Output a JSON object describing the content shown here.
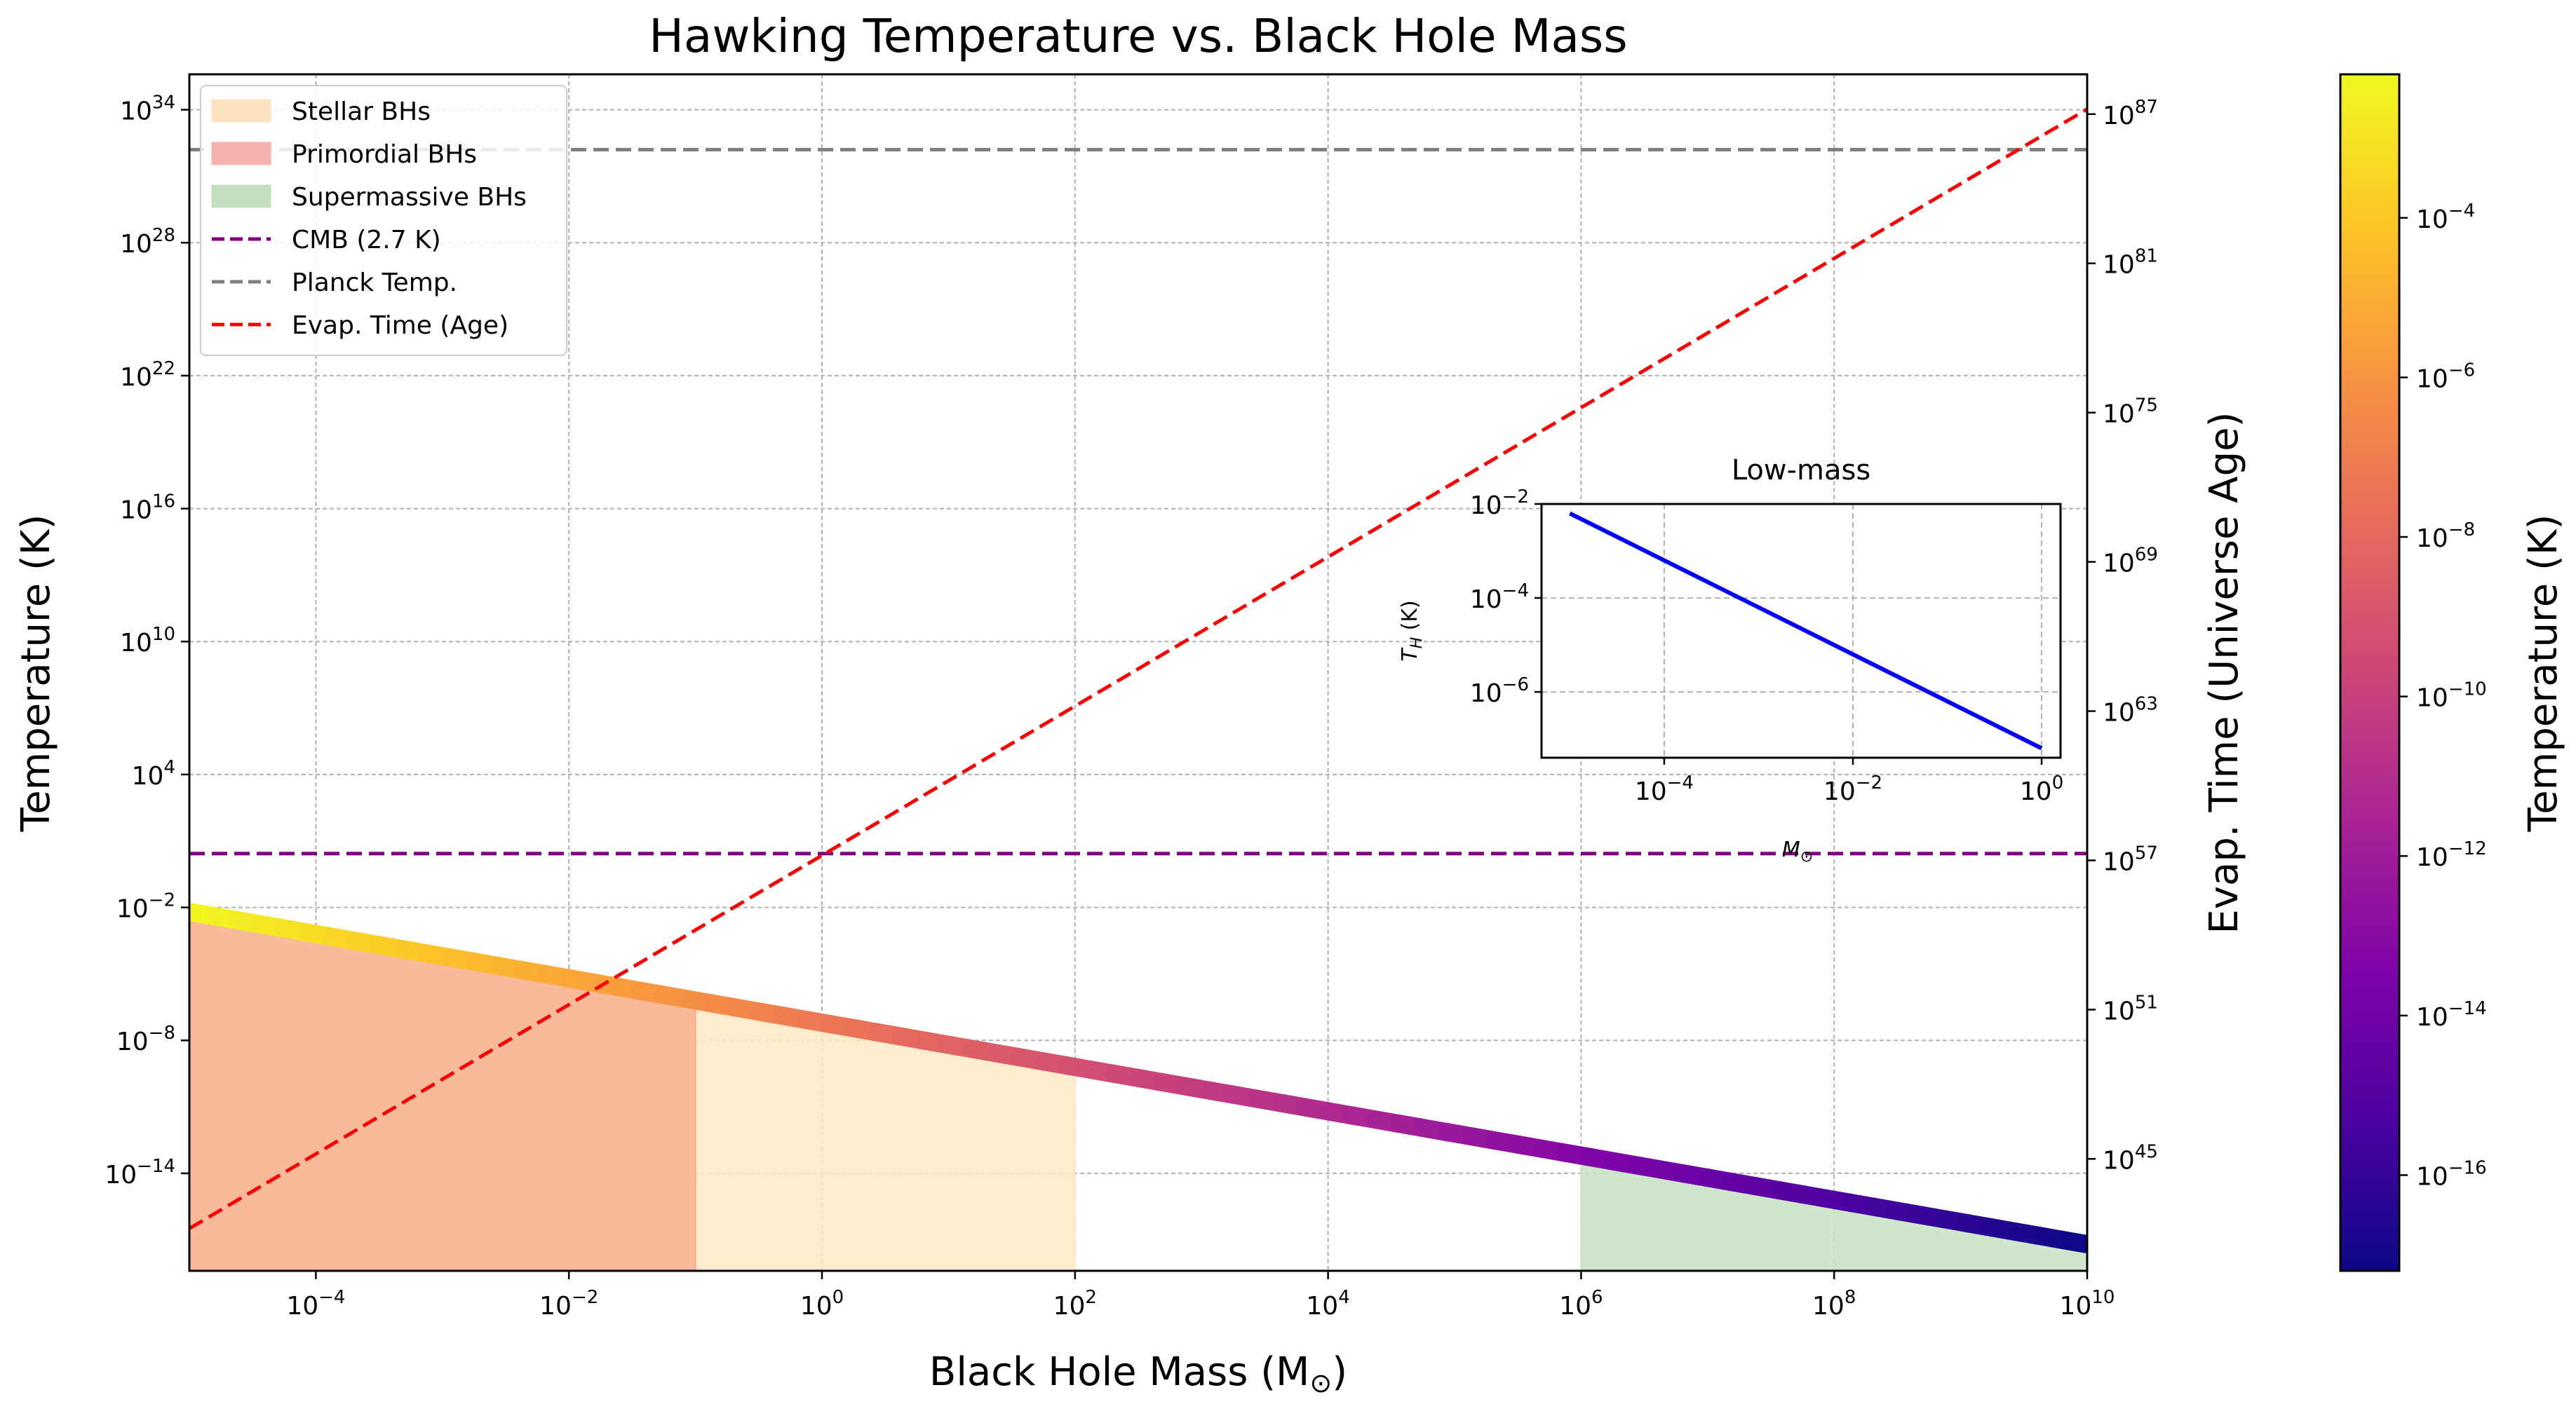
{
  "chart_data": {
    "type": "line",
    "title": "Hawking Temperature vs. Black Hole Mass",
    "xlabel": "Black Hole Mass (M",
    "xlabel_sub": "⊙",
    "xlabel_close": ")",
    "ylabel": "Temperature (K)",
    "y2label": "Evap. Time (Universe Age)",
    "xscale": "log",
    "xlim_exp": [
      -5,
      10
    ],
    "ylim_exp": [
      -18.4,
      35.6
    ],
    "y2lim_exp": [
      40.5,
      88.6
    ],
    "x_ticks": [
      {
        "base": "10",
        "exp": "−4",
        "e": -4
      },
      {
        "base": "10",
        "exp": "−2",
        "e": -2
      },
      {
        "base": "10",
        "exp": "0",
        "e": 0
      },
      {
        "base": "10",
        "exp": "2",
        "e": 2
      },
      {
        "base": "10",
        "exp": "4",
        "e": 4
      },
      {
        "base": "10",
        "exp": "6",
        "e": 6
      },
      {
        "base": "10",
        "exp": "8",
        "e": 8
      },
      {
        "base": "10",
        "exp": "10",
        "e": 10
      }
    ],
    "y_ticks": [
      {
        "base": "10",
        "exp": "34",
        "e": 34
      },
      {
        "base": "10",
        "exp": "28",
        "e": 28
      },
      {
        "base": "10",
        "exp": "22",
        "e": 22
      },
      {
        "base": "10",
        "exp": "16",
        "e": 16
      },
      {
        "base": "10",
        "exp": "10",
        "e": 10
      },
      {
        "base": "10",
        "exp": "4",
        "e": 4
      },
      {
        "base": "10",
        "exp": "−2",
        "e": -2
      },
      {
        "base": "10",
        "exp": "−8",
        "e": -8
      },
      {
        "base": "10",
        "exp": "−14",
        "e": -14
      }
    ],
    "y2_ticks": [
      {
        "base": "10",
        "exp": "87",
        "e": 87
      },
      {
        "base": "10",
        "exp": "81",
        "e": 81
      },
      {
        "base": "10",
        "exp": "75",
        "e": 75
      },
      {
        "base": "10",
        "exp": "69",
        "e": 69
      },
      {
        "base": "10",
        "exp": "63",
        "e": 63
      },
      {
        "base": "10",
        "exp": "57",
        "e": 57
      },
      {
        "base": "10",
        "exp": "51",
        "e": 51
      },
      {
        "base": "10",
        "exp": "45",
        "e": 45
      }
    ],
    "temperature_curve": {
      "name": "Hawking temperature",
      "mass_exp_range": [
        -5,
        10
      ],
      "temp_exp_at_min_mass": -2.2,
      "temp_exp_at_max_mass": -17.2
    },
    "regions": [
      {
        "name": "Stellar BHs",
        "mass_exp_range": [
          -5,
          2
        ],
        "color": "#ffe9c6",
        "opacity": 0.85
      },
      {
        "name": "Primordial BHs",
        "mass_exp_range": [
          -5,
          -1
        ],
        "color": "#f7a98a",
        "opacity": 0.75
      },
      {
        "name": "Supermassive BHs",
        "mass_exp_range": [
          6,
          10
        ],
        "color": "#c9e3c5",
        "opacity": 0.9
      }
    ],
    "reference_lines": [
      {
        "name": "CMB (2.7 K)",
        "temp_exp": 0.43,
        "color": "#800080",
        "style": "dashed"
      },
      {
        "name": "Planck Temp.",
        "temp_exp": 32.2,
        "color": "#808080",
        "style": "dashed"
      }
    ],
    "evap_line": {
      "name": "Evap. Time (Universe Age)",
      "mass_exp_range": [
        -5,
        10
      ],
      "time_exp_at_min_mass": 42.2,
      "time_exp_at_max_mass": 87.2,
      "color": "#ff0000"
    },
    "legend": {
      "placement": "upper-left",
      "entries": [
        {
          "label": "Stellar BHs",
          "kind": "patch",
          "color": "#fde4c0"
        },
        {
          "label": "Primordial BHs",
          "kind": "patch",
          "color": "#f5b2ae"
        },
        {
          "label": "Supermassive BHs",
          "kind": "patch",
          "color": "#c3dfbe"
        },
        {
          "label": "CMB (2.7 K)",
          "kind": "dash",
          "color": "#800080"
        },
        {
          "label": "Planck Temp.",
          "kind": "dash",
          "color": "#808080"
        },
        {
          "label": "Evap. Time (Age)",
          "kind": "dash",
          "color": "#ff0000"
        }
      ]
    },
    "colorbar": {
      "label": "Temperature (K)",
      "range_exp": [
        -17.2,
        -2.2
      ],
      "ticks": [
        {
          "base": "10",
          "exp": "−4",
          "e": -4
        },
        {
          "base": "10",
          "exp": "−6",
          "e": -6
        },
        {
          "base": "10",
          "exp": "−8",
          "e": -8
        },
        {
          "base": "10",
          "exp": "−10",
          "e": -10
        },
        {
          "base": "10",
          "exp": "−12",
          "e": -12
        },
        {
          "base": "10",
          "exp": "−14",
          "e": -14
        },
        {
          "base": "10",
          "exp": "−16",
          "e": -16
        }
      ]
    },
    "inset": {
      "title": "Low-mass",
      "xlabel": "M",
      "xlabel_sub": "⊙",
      "ylabel": "T",
      "ylabel_sub": "H",
      "ylabel_unit": " (K)",
      "xlim_exp": [
        -5.3,
        0.2
      ],
      "ylim_exp": [
        -7.4,
        -2.0
      ],
      "line_color": "#0000ff",
      "line_mass_exp_range": [
        -5,
        0
      ],
      "line_temp_exp_range": [
        -2.2,
        -7.2
      ],
      "x_ticks": [
        {
          "base": "10",
          "exp": "−4",
          "e": -4
        },
        {
          "base": "10",
          "exp": "−2",
          "e": -2
        },
        {
          "base": "10",
          "exp": "0",
          "e": 0
        }
      ],
      "y_ticks": [
        {
          "base": "10",
          "exp": "−2",
          "e": -2
        },
        {
          "base": "10",
          "exp": "−4",
          "e": -4
        },
        {
          "base": "10",
          "exp": "−6",
          "e": -6
        }
      ]
    }
  }
}
